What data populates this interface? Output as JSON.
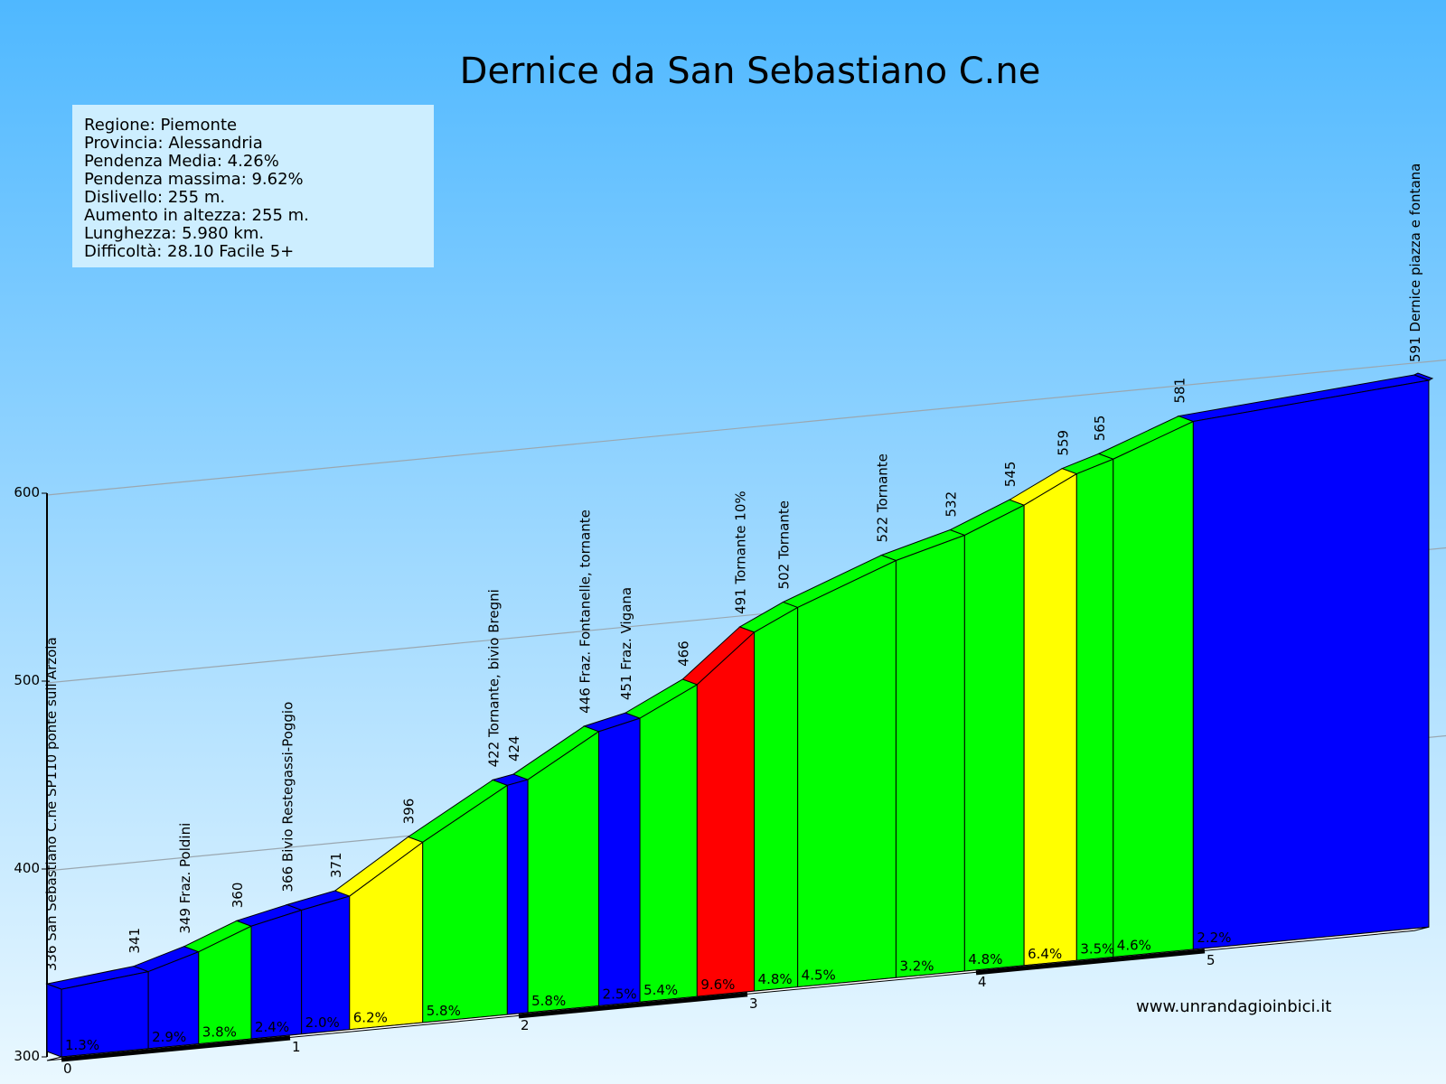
{
  "title": "Dernice da San Sebastiano C.ne",
  "info": {
    "lines": [
      "Regione: Piemonte",
      "Provincia: Alessandria",
      "Pendenza Media: 4.26%",
      "Pendenza massima: 9.62%",
      "Dislivello:   255 m.",
      "Aumento in altezza:   255 m.",
      "Lunghezza:  5.980 km.",
      "Difficoltà: 28.10 Facile 5+"
    ]
  },
  "website": "www.unrandagioinbici.it",
  "colors": {
    "sky_top": "#4fb8ff",
    "sky_bottom": "#e9f7ff",
    "info_box": "#cdeeff",
    "blue": "#0000ff",
    "green": "#00ff00",
    "yellow": "#ffff00",
    "red": "#ff0000"
  },
  "chart_data": {
    "type": "area",
    "y_axis": {
      "ticks": [
        300,
        400,
        500,
        600
      ],
      "min": 300,
      "max": 640
    },
    "x_axis": {
      "ticks": [
        "0",
        "1",
        "2",
        "3",
        "4",
        "5"
      ],
      "unit": "km",
      "max_km": 5.98
    },
    "points": [
      {
        "km": 0.0,
        "elev": 336,
        "label": "336 San Sebastiano C.ne SP110 ponte sull'Arzola"
      },
      {
        "km": 0.38,
        "elev": 341,
        "label": "341"
      },
      {
        "km": 0.6,
        "elev": 349,
        "label": "349 Fraz. Poldini"
      },
      {
        "km": 0.83,
        "elev": 360,
        "label": "360"
      },
      {
        "km": 1.05,
        "elev": 366,
        "label": "366 Bivio Restegassi-Poggio"
      },
      {
        "km": 1.26,
        "elev": 371,
        "label": "371"
      },
      {
        "km": 1.58,
        "elev": 396,
        "label": "396"
      },
      {
        "km": 1.95,
        "elev": 422,
        "label": "422 Tornante, bivio Bregni"
      },
      {
        "km": 2.04,
        "elev": 424,
        "label": "424"
      },
      {
        "km": 2.35,
        "elev": 446,
        "label": "446 Fraz. Fontanelle, tornante"
      },
      {
        "km": 2.53,
        "elev": 451,
        "label": "451 Fraz. Vigana"
      },
      {
        "km": 2.78,
        "elev": 466,
        "label": "466"
      },
      {
        "km": 3.03,
        "elev": 491,
        "label": "491 Tornante 10%"
      },
      {
        "km": 3.22,
        "elev": 502,
        "label": "502 Tornante"
      },
      {
        "km": 3.65,
        "elev": 522,
        "label": "522 Tornante"
      },
      {
        "km": 3.95,
        "elev": 532,
        "label": "532"
      },
      {
        "km": 4.21,
        "elev": 545,
        "label": "545"
      },
      {
        "km": 4.44,
        "elev": 559,
        "label": "559"
      },
      {
        "km": 4.6,
        "elev": 565,
        "label": "565"
      },
      {
        "km": 4.95,
        "elev": 581,
        "label": "581"
      },
      {
        "km": 5.98,
        "elev": 591,
        "label": "591 Dernice piazza e fontana"
      }
    ],
    "segments": [
      {
        "grade": "1.3%",
        "color": "blue"
      },
      {
        "grade": "2.9%",
        "color": "blue"
      },
      {
        "grade": "3.8%",
        "color": "green"
      },
      {
        "grade": "2.4%",
        "color": "blue"
      },
      {
        "grade": "2.0%",
        "color": "blue"
      },
      {
        "grade": "6.2%",
        "color": "yellow"
      },
      {
        "grade": "5.8%",
        "color": "green"
      },
      {
        "grade": "",
        "color": "blue"
      },
      {
        "grade": "5.8%",
        "color": "green"
      },
      {
        "grade": "2.5%",
        "color": "blue"
      },
      {
        "grade": "5.4%",
        "color": "green"
      },
      {
        "grade": "9.6%",
        "color": "red"
      },
      {
        "grade": "4.8%",
        "color": "green"
      },
      {
        "grade": "4.5%",
        "color": "green"
      },
      {
        "grade": "3.2%",
        "color": "green"
      },
      {
        "grade": "4.8%",
        "color": "green"
      },
      {
        "grade": "6.4%",
        "color": "yellow"
      },
      {
        "grade": "3.5%",
        "color": "green"
      },
      {
        "grade": "4.6%",
        "color": "green"
      },
      {
        "grade": "2.2%",
        "color": "blue"
      }
    ]
  }
}
